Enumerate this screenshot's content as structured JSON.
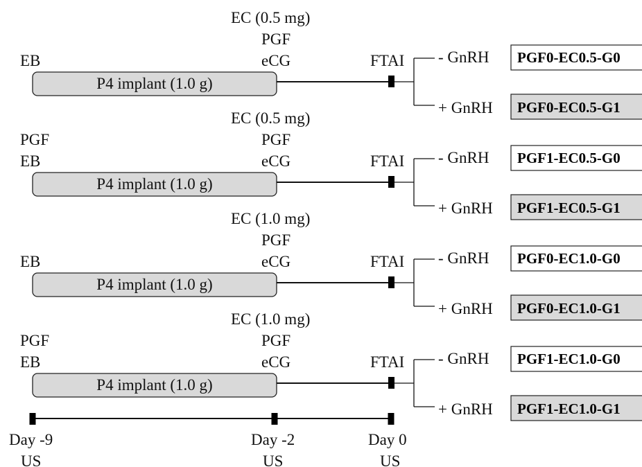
{
  "implant_label": "P4 implant (1.0 g)",
  "ftai_label": "FTAI",
  "gnrh_minus": "- GnRH",
  "gnrh_plus": "+ GnRH",
  "colors": {
    "implant_fill": "#d9d9d9",
    "box_g0": "#ffffff",
    "box_g1": "#d9d9d9"
  },
  "protocols": [
    {
      "day9_lines": [
        "EB"
      ],
      "day2_lines": [
        "EC (0.5 mg)",
        "PGF",
        "eCG"
      ],
      "group_g0": "PGF0-EC0.5-G0",
      "group_g1": "PGF0-EC0.5-G1"
    },
    {
      "day9_lines": [
        "PGF",
        "EB"
      ],
      "day2_lines": [
        "EC (0.5 mg)",
        "PGF",
        "eCG"
      ],
      "group_g0": "PGF1-EC0.5-G0",
      "group_g1": "PGF1-EC0.5-G1"
    },
    {
      "day9_lines": [
        "EB"
      ],
      "day2_lines": [
        "EC (1.0 mg)",
        "PGF",
        "eCG"
      ],
      "group_g0": "PGF0-EC1.0-G0",
      "group_g1": "PGF0-EC1.0-G1"
    },
    {
      "day9_lines": [
        "PGF",
        "EB"
      ],
      "day2_lines": [
        "EC (1.0 mg)",
        "PGF",
        "eCG"
      ],
      "group_g0": "PGF1-EC1.0-G0",
      "group_g1": "PGF1-EC1.0-G1"
    }
  ],
  "timeline": [
    {
      "day": "Day -9",
      "note": "US"
    },
    {
      "day": "Day -2",
      "note": "US"
    },
    {
      "day": "Day 0",
      "note": "US"
    }
  ]
}
